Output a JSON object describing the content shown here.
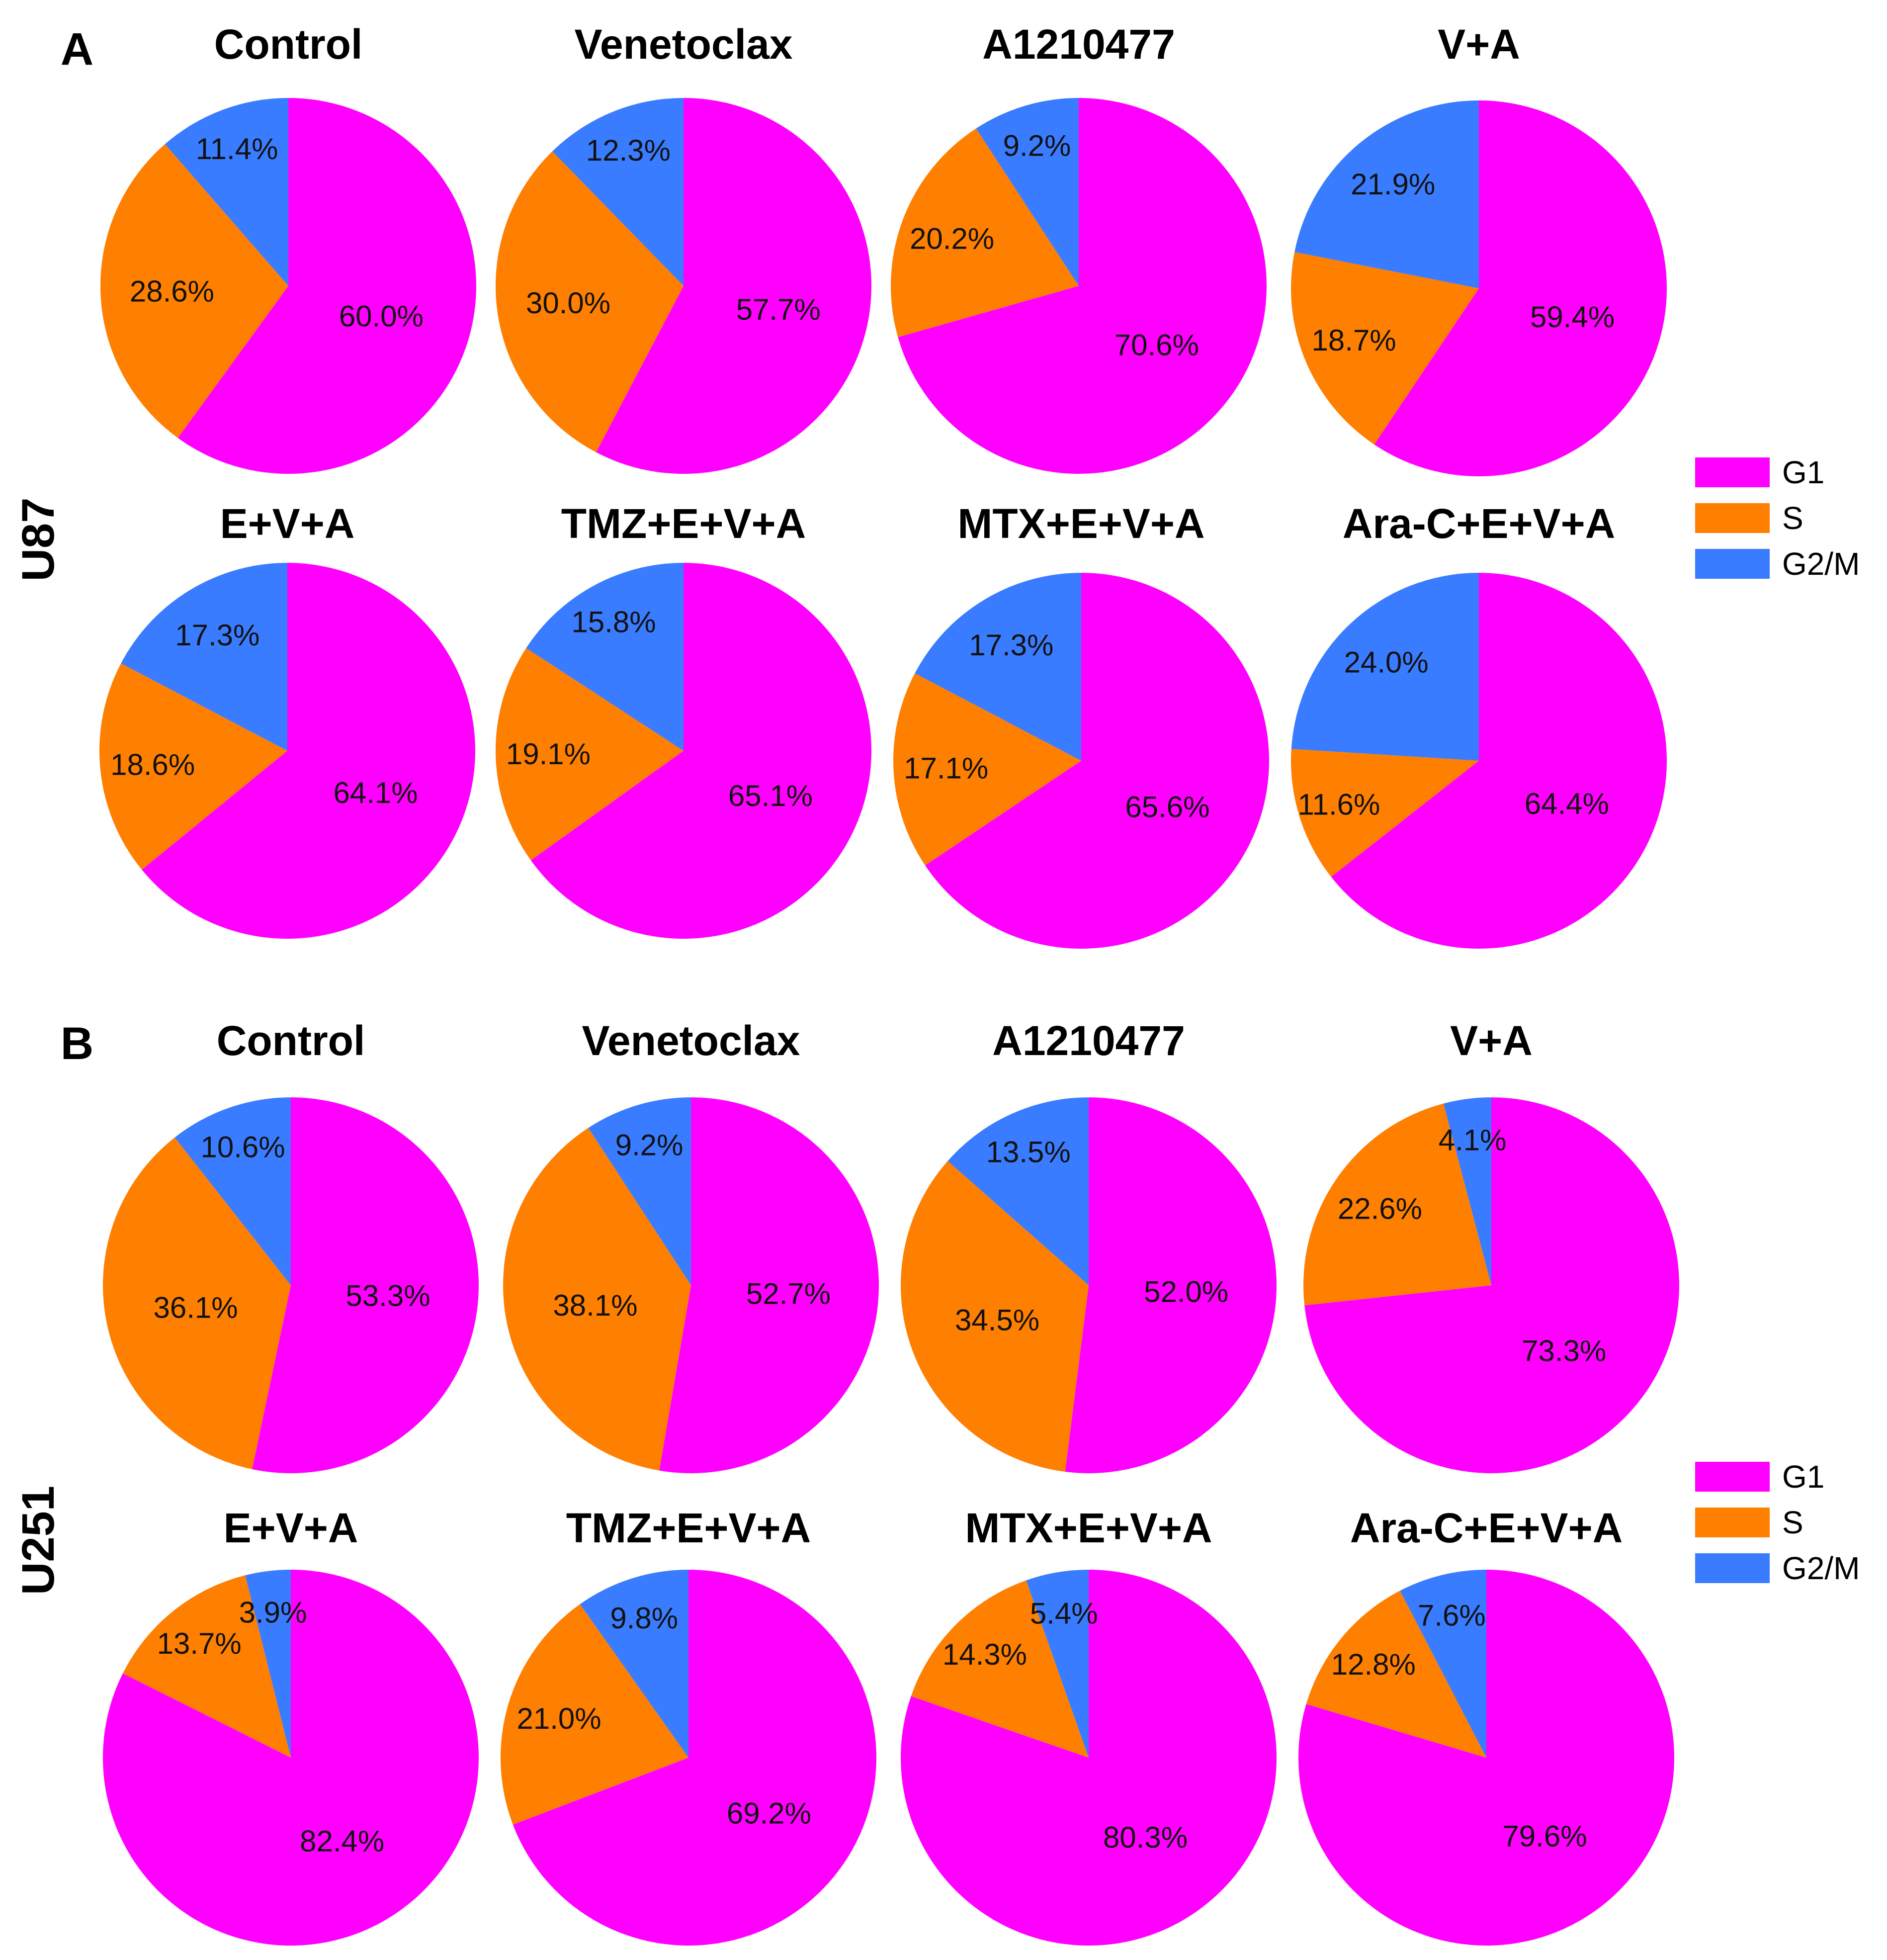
{
  "colors": {
    "G1": "#ff00ff",
    "S": "#ff7f00",
    "G2/M": "#3a7cff"
  },
  "chart_data": [
    {
      "panel": "A",
      "row_label": "U87",
      "type": "pie",
      "legend": [
        "G1",
        "S",
        "G2/M"
      ],
      "pies": [
        {
          "title": "Control",
          "slices": [
            {
              "name": "G1",
              "value": 60.0,
              "label": "60.0%"
            },
            {
              "name": "S",
              "value": 28.6,
              "label": "28.6%"
            },
            {
              "name": "G2/M",
              "value": 11.4,
              "label": "11.4%"
            }
          ]
        },
        {
          "title": "Venetoclax",
          "slices": [
            {
              "name": "G1",
              "value": 57.7,
              "label": "57.7%"
            },
            {
              "name": "S",
              "value": 30.0,
              "label": "30.0%"
            },
            {
              "name": "G2/M",
              "value": 12.3,
              "label": "12.3%"
            }
          ]
        },
        {
          "title": "A1210477",
          "slices": [
            {
              "name": "G1",
              "value": 70.6,
              "label": "70.6%"
            },
            {
              "name": "S",
              "value": 20.2,
              "label": "20.2%"
            },
            {
              "name": "G2/M",
              "value": 9.2,
              "label": "9.2%"
            }
          ]
        },
        {
          "title": "V+A",
          "slices": [
            {
              "name": "G1",
              "value": 59.4,
              "label": "59.4%"
            },
            {
              "name": "S",
              "value": 18.7,
              "label": "18.7%"
            },
            {
              "name": "G2/M",
              "value": 21.9,
              "label": "21.9%"
            }
          ]
        },
        {
          "title": "E+V+A",
          "slices": [
            {
              "name": "G1",
              "value": 64.1,
              "label": "64.1%"
            },
            {
              "name": "S",
              "value": 18.6,
              "label": "18.6%"
            },
            {
              "name": "G2/M",
              "value": 17.3,
              "label": "17.3%"
            }
          ]
        },
        {
          "title": "TMZ+E+V+A",
          "slices": [
            {
              "name": "G1",
              "value": 65.1,
              "label": "65.1%"
            },
            {
              "name": "S",
              "value": 19.1,
              "label": "19.1%"
            },
            {
              "name": "G2/M",
              "value": 15.8,
              "label": "15.8%"
            }
          ]
        },
        {
          "title": "MTX+E+V+A",
          "slices": [
            {
              "name": "G1",
              "value": 65.6,
              "label": "65.6%"
            },
            {
              "name": "S",
              "value": 17.1,
              "label": "17.1%"
            },
            {
              "name": "G2/M",
              "value": 17.3,
              "label": "17.3%"
            }
          ]
        },
        {
          "title": "Ara-C+E+V+A",
          "slices": [
            {
              "name": "G1",
              "value": 64.4,
              "label": "64.4%"
            },
            {
              "name": "S",
              "value": 11.6,
              "label": "11.6%"
            },
            {
              "name": "G2/M",
              "value": 24.0,
              "label": "24.0%"
            }
          ]
        }
      ]
    },
    {
      "panel": "B",
      "row_label": "U251",
      "type": "pie",
      "legend": [
        "G1",
        "S",
        "G2/M"
      ],
      "pies": [
        {
          "title": "Control",
          "slices": [
            {
              "name": "G1",
              "value": 53.3,
              "label": "53.3%"
            },
            {
              "name": "S",
              "value": 36.1,
              "label": "36.1%"
            },
            {
              "name": "G2/M",
              "value": 10.6,
              "label": "10.6%"
            }
          ]
        },
        {
          "title": "Venetoclax",
          "slices": [
            {
              "name": "G1",
              "value": 52.7,
              "label": "52.7%"
            },
            {
              "name": "S",
              "value": 38.1,
              "label": "38.1%"
            },
            {
              "name": "G2/M",
              "value": 9.2,
              "label": "9.2%"
            }
          ]
        },
        {
          "title": "A1210477",
          "slices": [
            {
              "name": "G1",
              "value": 52.0,
              "label": "52.0%"
            },
            {
              "name": "S",
              "value": 34.5,
              "label": "34.5%"
            },
            {
              "name": "G2/M",
              "value": 13.5,
              "label": "13.5%"
            }
          ]
        },
        {
          "title": "V+A",
          "slices": [
            {
              "name": "G1",
              "value": 73.3,
              "label": "73.3%"
            },
            {
              "name": "S",
              "value": 22.6,
              "label": "22.6%"
            },
            {
              "name": "G2/M",
              "value": 4.1,
              "label": "4.1%"
            }
          ]
        },
        {
          "title": "E+V+A",
          "slices": [
            {
              "name": "G1",
              "value": 82.4,
              "label": "82.4%"
            },
            {
              "name": "S",
              "value": 13.7,
              "label": "13.7%"
            },
            {
              "name": "G2/M",
              "value": 3.9,
              "label": "3.9%"
            }
          ]
        },
        {
          "title": "TMZ+E+V+A",
          "slices": [
            {
              "name": "G1",
              "value": 69.2,
              "label": "69.2%"
            },
            {
              "name": "S",
              "value": 21.0,
              "label": "21.0%"
            },
            {
              "name": "G2/M",
              "value": 9.8,
              "label": "9.8%"
            }
          ]
        },
        {
          "title": "MTX+E+V+A",
          "slices": [
            {
              "name": "G1",
              "value": 80.3,
              "label": "80.3%"
            },
            {
              "name": "S",
              "value": 14.3,
              "label": "14.3%"
            },
            {
              "name": "G2/M",
              "value": 5.4,
              "label": "5.4%"
            }
          ]
        },
        {
          "title": "Ara-C+E+V+A",
          "slices": [
            {
              "name": "G1",
              "value": 79.6,
              "label": "79.6%"
            },
            {
              "name": "S",
              "value": 12.8,
              "label": "12.8%"
            },
            {
              "name": "G2/M",
              "value": 7.6,
              "label": "7.6%"
            }
          ]
        }
      ]
    }
  ]
}
